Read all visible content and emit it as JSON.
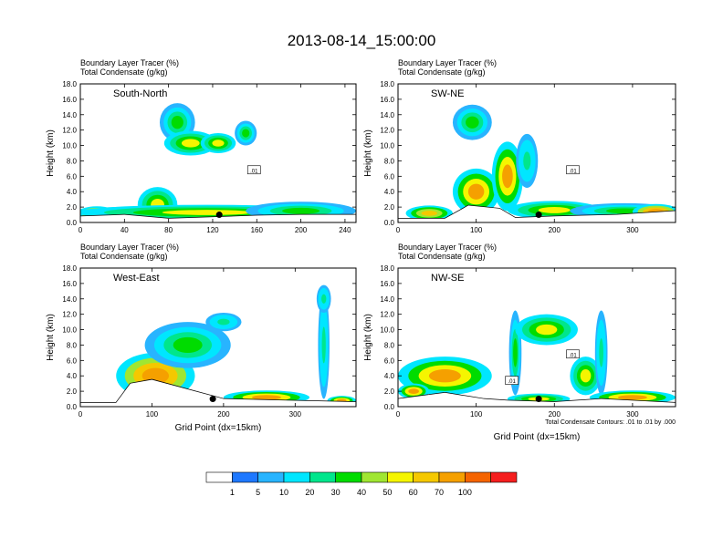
{
  "title": "2013-08-14_15:00:00",
  "colorbar": {
    "colors": [
      "#ffffff",
      "#1e78ff",
      "#28b4ff",
      "#00e6ff",
      "#00e68c",
      "#00dc00",
      "#a0e632",
      "#f5f500",
      "#f5c800",
      "#f5a000",
      "#f56400",
      "#f51e1e"
    ],
    "labels": [
      "1",
      "5",
      "10",
      "20",
      "30",
      "40",
      "50",
      "60",
      "70",
      "100"
    ]
  },
  "chart_data": [
    {
      "type": "heatmap",
      "id": "south-north",
      "panel_label": "South-North",
      "subtitle_line1": "Boundary Layer Tracer   (%)",
      "subtitle_line2": "Total Condensate   (g/kg)",
      "ylabel": "Height (km)",
      "xlabel": "",
      "xlim": [
        0,
        250
      ],
      "ylim": [
        0,
        18
      ],
      "xticks": [
        0,
        40,
        80,
        120,
        160,
        200,
        240
      ],
      "yticks": [
        "0.0",
        "2.0",
        "4.0",
        "6.0",
        "8.0",
        "10.0",
        "12.0",
        "14.0",
        "16.0",
        "18.0"
      ],
      "contour_label": ".01",
      "terrain": [
        [
          0,
          0.8
        ],
        [
          40,
          1.0
        ],
        [
          80,
          0.5
        ],
        [
          120,
          0.7
        ],
        [
          160,
          0.9
        ],
        [
          200,
          1.0
        ],
        [
          250,
          1.0
        ]
      ],
      "blobs": [
        {
          "x": 15,
          "y": 1.2,
          "rx": 18,
          "ry": 0.9,
          "v": 70
        },
        {
          "x": 70,
          "y": 2.3,
          "rx": 18,
          "ry": 2.3,
          "v": 40
        },
        {
          "x": 115,
          "y": 1.3,
          "rx": 120,
          "ry": 1.0,
          "v": 40
        },
        {
          "x": 200,
          "y": 1.5,
          "rx": 50,
          "ry": 1.2,
          "v": 30
        },
        {
          "x": 88,
          "y": 13.0,
          "rx": 16,
          "ry": 2.5,
          "v": 30
        },
        {
          "x": 100,
          "y": 10.3,
          "rx": 24,
          "ry": 1.6,
          "v": 40
        },
        {
          "x": 150,
          "y": 11.6,
          "rx": 10,
          "ry": 1.6,
          "v": 30
        },
        {
          "x": 125,
          "y": 10.3,
          "rx": 16,
          "ry": 1.3,
          "v": 40
        }
      ],
      "dot": {
        "x": 126,
        "y": 1.0
      }
    },
    {
      "type": "heatmap",
      "id": "sw-ne",
      "panel_label": "SW-NE",
      "subtitle_line1": "Boundary Layer Tracer   (%)",
      "subtitle_line2": "Total Condensate   (g/kg)",
      "ylabel": "Height (km)",
      "xlabel": "",
      "xlim": [
        0,
        355
      ],
      "ylim": [
        0,
        18
      ],
      "xticks": [
        0,
        100,
        200,
        300
      ],
      "yticks": [
        "0.0",
        "2.0",
        "4.0",
        "6.0",
        "8.0",
        "10.0",
        "12.0",
        "14.0",
        "16.0",
        "18.0"
      ],
      "contour_label": ".01",
      "terrain": [
        [
          0,
          0.5
        ],
        [
          60,
          0.5
        ],
        [
          90,
          2.2
        ],
        [
          130,
          1.8
        ],
        [
          150,
          0.6
        ],
        [
          200,
          0.8
        ],
        [
          280,
          1.0
        ],
        [
          355,
          1.5
        ]
      ],
      "blobs": [
        {
          "x": 40,
          "y": 1.2,
          "rx": 30,
          "ry": 1.0,
          "v": 50
        },
        {
          "x": 100,
          "y": 4.0,
          "rx": 30,
          "ry": 3.0,
          "v": 60
        },
        {
          "x": 140,
          "y": 6.0,
          "rx": 20,
          "ry": 4.5,
          "v": 60
        },
        {
          "x": 200,
          "y": 1.6,
          "rx": 60,
          "ry": 1.2,
          "v": 40
        },
        {
          "x": 290,
          "y": 1.5,
          "rx": 70,
          "ry": 1.0,
          "v": 30
        },
        {
          "x": 95,
          "y": 13.0,
          "rx": 25,
          "ry": 2.3,
          "v": 30
        },
        {
          "x": 165,
          "y": 8.0,
          "rx": 14,
          "ry": 3.5,
          "v": 20
        },
        {
          "x": 330,
          "y": 1.4,
          "rx": 30,
          "ry": 1.0,
          "v": 70
        }
      ],
      "dot": {
        "x": 180,
        "y": 1.0
      }
    },
    {
      "type": "heatmap",
      "id": "west-east",
      "panel_label": "West-East",
      "subtitle_line1": "Boundary Layer Tracer   (%)",
      "subtitle_line2": "Total Condensate   (g/kg)",
      "ylabel": "Height (km)",
      "xlabel": "Grid Point (dx=15km)",
      "xlim": [
        0,
        385
      ],
      "ylim": [
        0,
        18
      ],
      "xticks": [
        0,
        100,
        200,
        300
      ],
      "yticks": [
        "0.0",
        "2.0",
        "4.0",
        "6.0",
        "8.0",
        "10.0",
        "12.0",
        "14.0",
        "16.0",
        "18.0"
      ],
      "contour_label": "",
      "terrain": [
        [
          0,
          0.5
        ],
        [
          50,
          0.5
        ],
        [
          70,
          3.0
        ],
        [
          100,
          3.5
        ],
        [
          160,
          2.0
        ],
        [
          200,
          1.0
        ],
        [
          290,
          0.8
        ],
        [
          385,
          0.6
        ]
      ],
      "blobs": [
        {
          "x": 105,
          "y": 4.0,
          "rx": 55,
          "ry": 3.0,
          "v": 70
        },
        {
          "x": 150,
          "y": 8.0,
          "rx": 60,
          "ry": 3.0,
          "v": 30
        },
        {
          "x": 200,
          "y": 11.0,
          "rx": 25,
          "ry": 1.2,
          "v": 20
        },
        {
          "x": 260,
          "y": 1.2,
          "rx": 60,
          "ry": 0.9,
          "v": 60
        },
        {
          "x": 340,
          "y": 8.0,
          "rx": 8,
          "ry": 7.0,
          "v": 20
        },
        {
          "x": 340,
          "y": 14.0,
          "rx": 10,
          "ry": 1.8,
          "v": 20
        },
        {
          "x": 365,
          "y": 0.8,
          "rx": 20,
          "ry": 0.6,
          "v": 60
        }
      ],
      "dot": {
        "x": 185,
        "y": 1.0
      }
    },
    {
      "type": "heatmap",
      "id": "nw-se",
      "panel_label": "NW-SE",
      "subtitle_line1": "Boundary Layer Tracer   (%)",
      "subtitle_line2": "Total Condensate   (g/kg)",
      "ylabel": "Height (km)",
      "xlabel": "Grid Point (dx=15km)",
      "xlim": [
        0,
        355
      ],
      "ylim": [
        0,
        18
      ],
      "xticks": [
        0,
        100,
        200,
        300
      ],
      "yticks": [
        "0.0",
        "2.0",
        "4.0",
        "6.0",
        "8.0",
        "10.0",
        "12.0",
        "14.0",
        "16.0",
        "18.0"
      ],
      "contour_label": ".01",
      "contour_label2": ".01",
      "footnote": "Total Condensate Contours: .01 to .01 by .000",
      "terrain": [
        [
          0,
          1.0
        ],
        [
          60,
          1.8
        ],
        [
          110,
          1.0
        ],
        [
          140,
          0.8
        ],
        [
          200,
          0.6
        ],
        [
          260,
          1.0
        ],
        [
          355,
          0.5
        ]
      ],
      "blobs": [
        {
          "x": 60,
          "y": 4.0,
          "rx": 60,
          "ry": 2.5,
          "v": 60
        },
        {
          "x": 20,
          "y": 2.0,
          "rx": 20,
          "ry": 1.0,
          "v": 60
        },
        {
          "x": 150,
          "y": 7.0,
          "rx": 8,
          "ry": 5.5,
          "v": 30
        },
        {
          "x": 190,
          "y": 10.0,
          "rx": 40,
          "ry": 2.0,
          "v": 40
        },
        {
          "x": 240,
          "y": 4.0,
          "rx": 20,
          "ry": 2.5,
          "v": 40
        },
        {
          "x": 260,
          "y": 7.0,
          "rx": 8,
          "ry": 5.5,
          "v": 20
        },
        {
          "x": 300,
          "y": 1.2,
          "rx": 55,
          "ry": 0.9,
          "v": 60
        },
        {
          "x": 180,
          "y": 1.0,
          "rx": 40,
          "ry": 0.7,
          "v": 40
        }
      ],
      "dot": {
        "x": 180,
        "y": 1.0
      }
    }
  ]
}
